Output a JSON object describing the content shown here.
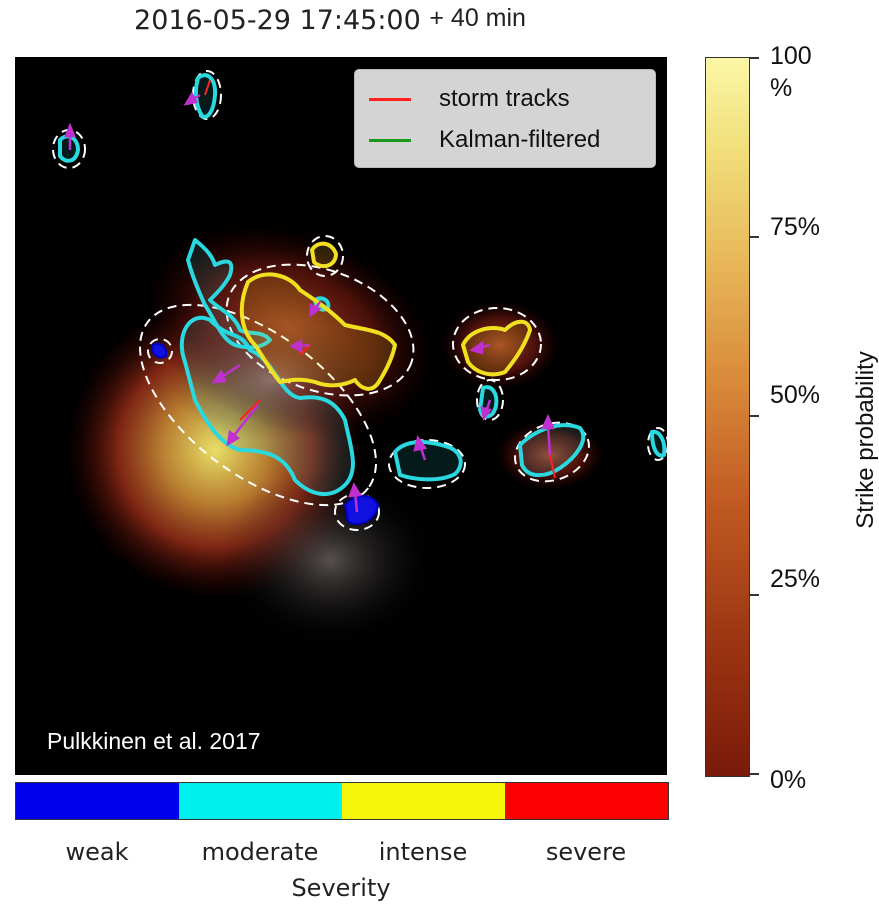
{
  "title": {
    "timestamp": "2016-05-29 17:45:00",
    "lead_time": "+ 40 min"
  },
  "legend": {
    "items": [
      {
        "label": "storm tracks",
        "color": "#ff2020"
      },
      {
        "label": "Kalman-filtered",
        "color": "#1a9a1a"
      }
    ]
  },
  "watermark": "Pulkkinen et al. 2017",
  "colorbar": {
    "title": "Strike probability",
    "ticks": [
      "100\n%",
      "75%",
      "50%",
      "25%",
      "0%"
    ],
    "tick_100_line1": "100",
    "tick_100_line2": "%",
    "tick_75": "75%",
    "tick_50": "50%",
    "tick_25": "25%",
    "tick_0": "0%"
  },
  "severity": {
    "title": "Severity",
    "levels": [
      {
        "label": "weak",
        "color": "#0000ee"
      },
      {
        "label": "moderate",
        "color": "#00f0f0"
      },
      {
        "label": "intense",
        "color": "#f5f50a"
      },
      {
        "label": "severe",
        "color": "#fa0000"
      }
    ]
  },
  "colors": {
    "map_background": "#000000",
    "contour_moderate": "#2ad8e0",
    "contour_intense": "#f0e020",
    "contour_weak": "#1010e0",
    "ellipse": "#ffffff",
    "motion_arrow": "#c030d0"
  }
}
